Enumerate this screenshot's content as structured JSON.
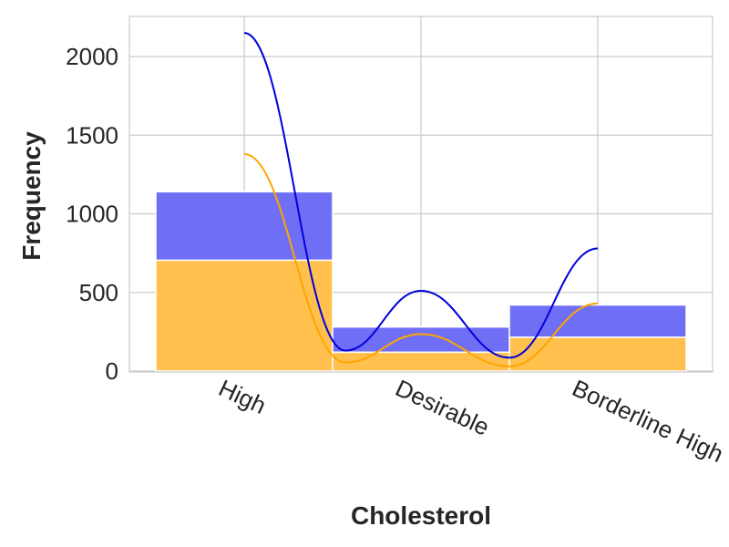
{
  "chart_data": {
    "type": "bar",
    "stacked": true,
    "xlabel": "Cholesterol",
    "ylabel": "Frequency",
    "categories": [
      "High",
      "Desirable",
      "Borderline High"
    ],
    "ylim": [
      0,
      2250
    ],
    "yticks": [
      0,
      500,
      1000,
      1500,
      2000
    ],
    "grid": true,
    "series": [
      {
        "values": [
          705,
          120,
          215
        ],
        "color": "#FFC04D"
      },
      {
        "values": [
          435,
          160,
          205
        ],
        "color": "#6F6FF5"
      }
    ],
    "kde_lines": [
      {
        "color": "#FFA500",
        "peaks": [
          1380,
          235,
          430
        ],
        "troughs": [
          55,
          30
        ]
      },
      {
        "color": "#0000DD",
        "peaks": [
          2150,
          510,
          780
        ],
        "troughs": [
          130,
          85
        ]
      }
    ]
  }
}
